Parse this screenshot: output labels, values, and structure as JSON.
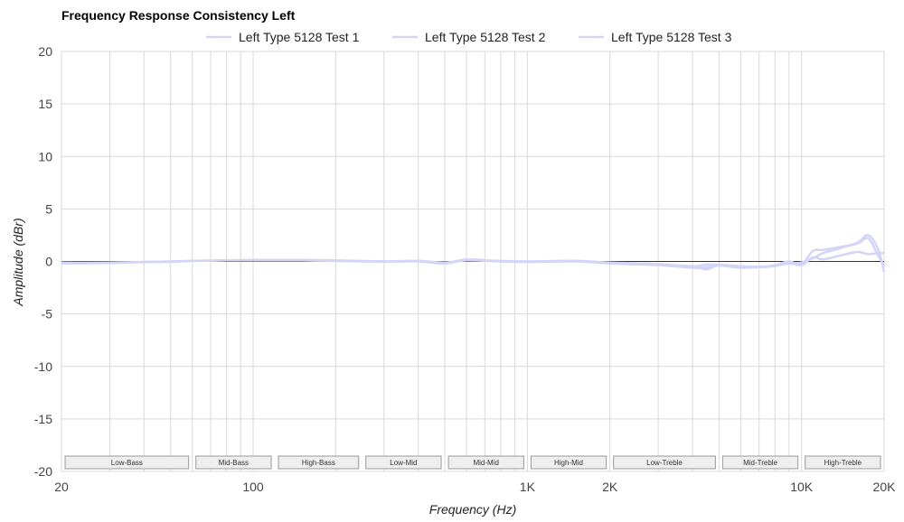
{
  "chart_data": {
    "type": "line",
    "title": "Frequency Response Consistency Left",
    "xlabel": "Frequency (Hz)",
    "ylabel": "Amplitude (dBr)",
    "x_scale": "log",
    "xlim": [
      20,
      20000
    ],
    "ylim": [
      -20,
      20
    ],
    "x_ticks": [
      {
        "value": 20,
        "label": "20"
      },
      {
        "value": 100,
        "label": "100"
      },
      {
        "value": 1000,
        "label": "1K"
      },
      {
        "value": 2000,
        "label": "2K"
      },
      {
        "value": 10000,
        "label": "10K"
      },
      {
        "value": 20000,
        "label": "20K"
      }
    ],
    "y_ticks": [
      20,
      15,
      10,
      5,
      0,
      -5,
      -10,
      -15,
      -20
    ],
    "legend_position": "top",
    "grid": true,
    "series_color": "#d4d4f7",
    "series": [
      {
        "name": "Left Type 5128 Test 1",
        "points": [
          [
            20,
            -0.1
          ],
          [
            30,
            -0.15
          ],
          [
            40,
            -0.05
          ],
          [
            50,
            -0.05
          ],
          [
            60,
            0.05
          ],
          [
            80,
            0.1
          ],
          [
            100,
            0.1
          ],
          [
            150,
            0.1
          ],
          [
            200,
            0.05
          ],
          [
            300,
            0.0
          ],
          [
            400,
            0.05
          ],
          [
            500,
            -0.15
          ],
          [
            600,
            0.1
          ],
          [
            800,
            0.0
          ],
          [
            1000,
            0.0
          ],
          [
            1500,
            0.05
          ],
          [
            2000,
            -0.1
          ],
          [
            3000,
            -0.25
          ],
          [
            4000,
            -0.45
          ],
          [
            4500,
            -0.3
          ],
          [
            5000,
            -0.3
          ],
          [
            6000,
            -0.45
          ],
          [
            7000,
            -0.5
          ],
          [
            8000,
            -0.4
          ],
          [
            9000,
            -0.2
          ],
          [
            10000,
            -0.1
          ],
          [
            11000,
            0.3
          ],
          [
            12000,
            0.8
          ],
          [
            14000,
            1.3
          ],
          [
            16000,
            1.8
          ],
          [
            17500,
            2.5
          ],
          [
            19000,
            1.2
          ],
          [
            20000,
            -1.0
          ]
        ]
      },
      {
        "name": "Left Type 5128 Test 2",
        "points": [
          [
            20,
            -0.2
          ],
          [
            30,
            -0.15
          ],
          [
            40,
            -0.05
          ],
          [
            50,
            0.0
          ],
          [
            60,
            0.05
          ],
          [
            80,
            0.1
          ],
          [
            100,
            0.15
          ],
          [
            150,
            0.15
          ],
          [
            200,
            0.1
          ],
          [
            300,
            0.0
          ],
          [
            400,
            0.0
          ],
          [
            500,
            -0.2
          ],
          [
            600,
            0.2
          ],
          [
            800,
            0.0
          ],
          [
            1000,
            -0.05
          ],
          [
            1500,
            0.0
          ],
          [
            2000,
            -0.2
          ],
          [
            3000,
            -0.35
          ],
          [
            4000,
            -0.6
          ],
          [
            4500,
            -0.55
          ],
          [
            5000,
            -0.4
          ],
          [
            6000,
            -0.6
          ],
          [
            7000,
            -0.55
          ],
          [
            8000,
            -0.45
          ],
          [
            9000,
            -0.15
          ],
          [
            10000,
            -0.3
          ],
          [
            11000,
            1.0
          ],
          [
            12000,
            1.1
          ],
          [
            14000,
            1.4
          ],
          [
            16000,
            1.7
          ],
          [
            17500,
            2.2
          ],
          [
            19000,
            0.6
          ],
          [
            20000,
            -0.4
          ]
        ]
      },
      {
        "name": "Left Type 5128 Test 3",
        "points": [
          [
            20,
            -0.15
          ],
          [
            30,
            -0.1
          ],
          [
            40,
            -0.05
          ],
          [
            50,
            0.0
          ],
          [
            60,
            0.05
          ],
          [
            80,
            0.1
          ],
          [
            100,
            0.1
          ],
          [
            150,
            0.1
          ],
          [
            200,
            0.05
          ],
          [
            300,
            0.0
          ],
          [
            400,
            0.05
          ],
          [
            500,
            -0.1
          ],
          [
            600,
            0.15
          ],
          [
            800,
            0.05
          ],
          [
            1000,
            0.0
          ],
          [
            1500,
            0.05
          ],
          [
            2000,
            -0.15
          ],
          [
            3000,
            -0.3
          ],
          [
            4000,
            -0.5
          ],
          [
            4500,
            -0.75
          ],
          [
            5000,
            -0.35
          ],
          [
            6000,
            -0.5
          ],
          [
            7000,
            -0.55
          ],
          [
            8000,
            -0.35
          ],
          [
            9000,
            0.0
          ],
          [
            10000,
            -0.35
          ],
          [
            11000,
            0.4
          ],
          [
            12000,
            0.2
          ],
          [
            14000,
            0.6
          ],
          [
            16000,
            0.9
          ],
          [
            17500,
            0.7
          ],
          [
            19000,
            0.8
          ],
          [
            20000,
            0.8
          ]
        ]
      }
    ],
    "reference_line": {
      "y": 0,
      "color": "#333333"
    },
    "bands": [
      {
        "label": "Low-Bass",
        "from": 20,
        "to": 60
      },
      {
        "label": "Mid-Bass",
        "from": 60,
        "to": 120
      },
      {
        "label": "High-Bass",
        "from": 120,
        "to": 250
      },
      {
        "label": "Low-Mid",
        "from": 250,
        "to": 500
      },
      {
        "label": "Mid-Mid",
        "from": 500,
        "to": 1000
      },
      {
        "label": "High-Mid",
        "from": 1000,
        "to": 2000
      },
      {
        "label": "Low-Treble",
        "from": 2000,
        "to": 5000
      },
      {
        "label": "Mid-Treble",
        "from": 5000,
        "to": 10000
      },
      {
        "label": "High-Treble",
        "from": 10000,
        "to": 20000
      }
    ]
  }
}
